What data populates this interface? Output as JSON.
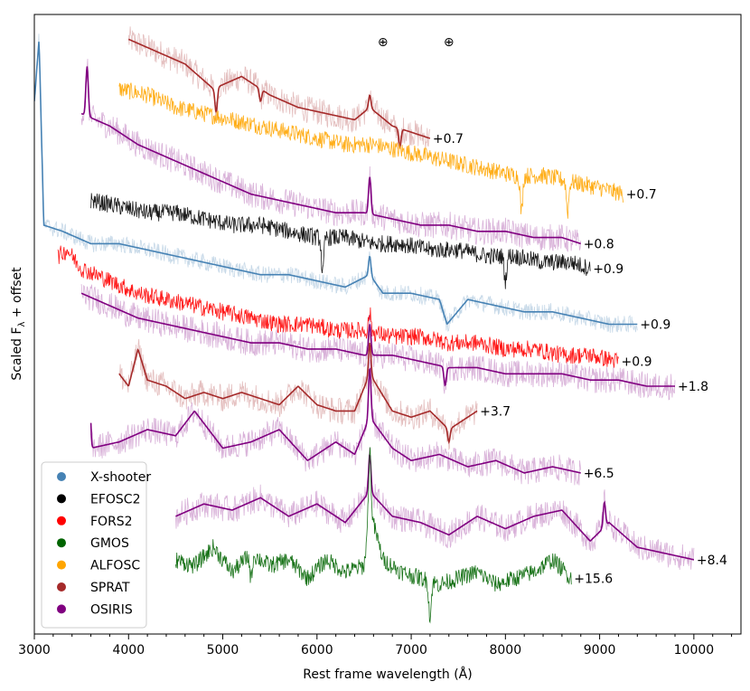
{
  "chart_data": {
    "type": "line",
    "title": "",
    "xlabel": "Rest frame wavelength (Å)",
    "ylabel_main": "Scaled F",
    "ylabel_sub": "λ",
    "ylabel_tail": " + offset",
    "xlim": [
      3000,
      10500
    ],
    "ylim": [
      0,
      100
    ],
    "x_ticks": [
      3000,
      4000,
      5000,
      6000,
      7000,
      8000,
      9000,
      10000
    ],
    "x_tick_labels": [
      "3000",
      "4000",
      "5000",
      "6000",
      "7000",
      "8000",
      "9000",
      "10000"
    ],
    "telluric_markers": [
      {
        "x": 6700,
        "symbol": "⊕"
      },
      {
        "x": 7400,
        "symbol": "⊕"
      }
    ],
    "instruments": {
      "xshooter": {
        "name": "X-shooter",
        "color": "#4682b4"
      },
      "efosc2": {
        "name": "EFOSC2",
        "color": "#000000"
      },
      "fors2": {
        "name": "FORS2",
        "color": "#ff0000"
      },
      "gmos": {
        "name": "GMOS",
        "color": "#006400"
      },
      "alfosc": {
        "name": "ALFOSC",
        "color": "#ffa500"
      },
      "sprat": {
        "name": "SPRAT",
        "color": "#a52a2a"
      },
      "osiris": {
        "name": "OSIRIS",
        "color": "#800080"
      }
    },
    "legend_order": [
      "xshooter",
      "efosc2",
      "fors2",
      "gmos",
      "alfosc",
      "sprat",
      "osiris"
    ],
    "legend_position": "lower-left",
    "spectra": [
      {
        "instrument": "sprat",
        "label": "+0.7",
        "x": [
          4000,
          4300,
          4600,
          4900,
          5200,
          5500,
          5800,
          6100,
          6400,
          6560,
          6800,
          7000,
          7200
        ],
        "y": [
          96,
          94,
          92,
          88,
          90,
          87,
          85,
          84,
          83,
          85,
          82,
          81,
          80
        ],
        "lines": [
          [
            4930,
            -4
          ],
          [
            5400,
            -2
          ],
          [
            6560,
            2
          ],
          [
            6880,
            -3
          ]
        ]
      },
      {
        "instrument": "alfosc",
        "label": "+0.7",
        "x": [
          3900,
          4200,
          4500,
          4800,
          5100,
          5400,
          5700,
          6000,
          6300,
          6600,
          6900,
          7200,
          7500,
          7800,
          8100,
          8400,
          8700,
          9000,
          9250
        ],
        "y": [
          88,
          87,
          85,
          84,
          83,
          82,
          81,
          80,
          79,
          79,
          78,
          77,
          76,
          75,
          74,
          74,
          73,
          72,
          71
        ],
        "lines": [
          [
            8170,
            -6
          ],
          [
            8660,
            -5
          ]
        ]
      },
      {
        "instrument": "osiris",
        "label": "+0.8",
        "x": [
          3500,
          3800,
          4100,
          4400,
          4700,
          5000,
          5300,
          5600,
          5900,
          6200,
          6500,
          6800,
          7100,
          7400,
          7700,
          8000,
          8300,
          8600,
          8800
        ],
        "y": [
          84,
          82,
          79,
          77,
          75,
          73,
          71,
          70,
          69,
          68,
          68,
          67,
          66,
          66,
          65,
          65,
          64,
          64,
          63
        ],
        "lines": [
          [
            3560,
            8
          ],
          [
            6560,
            6
          ]
        ]
      },
      {
        "instrument": "efosc2",
        "label": "+0.9",
        "x": [
          3600,
          3900,
          4200,
          4500,
          4800,
          5100,
          5400,
          5700,
          6000,
          6300,
          6600,
          6900,
          7200,
          7500,
          7800,
          8100,
          8400,
          8700,
          8900
        ],
        "y": [
          70,
          69,
          68,
          68,
          67,
          66,
          66,
          65,
          64,
          64,
          63,
          63,
          62,
          62,
          61,
          61,
          60,
          60,
          59
        ],
        "lines": [
          [
            6060,
            -6
          ],
          [
            8000,
            -4
          ]
        ]
      },
      {
        "instrument": "xshooter",
        "label": "+0.9",
        "x": [
          3000,
          3050,
          3100,
          3300,
          3600,
          3900,
          4200,
          4500,
          4800,
          5100,
          5400,
          5700,
          6000,
          6300,
          6560,
          6700,
          7000,
          7300,
          7380,
          7600,
          7900,
          8200,
          8500,
          8800,
          9100,
          9400
        ],
        "y": [
          86,
          96,
          66,
          65,
          63,
          63,
          62,
          61,
          60,
          59,
          58,
          58,
          57,
          56,
          58,
          55,
          55,
          54,
          50,
          54,
          53,
          52,
          52,
          51,
          50,
          50
        ],
        "lines": [
          [
            6560,
            3
          ]
        ]
      },
      {
        "instrument": "fors2",
        "label": "+0.9",
        "x": [
          3250,
          3350,
          3500,
          3800,
          4100,
          4400,
          4700,
          5000,
          5300,
          5600,
          5900,
          6200,
          6500,
          6800,
          7100,
          7400,
          7700,
          8000,
          8300,
          8600,
          8900,
          9200
        ],
        "y": [
          61,
          62,
          59,
          57,
          55,
          54,
          53,
          52,
          51,
          50,
          50,
          49,
          49,
          48,
          48,
          47,
          47,
          46,
          46,
          45,
          45,
          44
        ],
        "lines": [
          [
            6560,
            3
          ]
        ]
      },
      {
        "instrument": "osiris",
        "label": "+1.8",
        "x": [
          3500,
          3800,
          4100,
          4400,
          4700,
          5000,
          5300,
          5600,
          5900,
          6200,
          6500,
          6800,
          7100,
          7400,
          7700,
          8000,
          8300,
          8600,
          8900,
          9200,
          9500,
          9800
        ],
        "y": [
          55,
          53,
          51,
          50,
          49,
          48,
          47,
          47,
          46,
          46,
          45,
          45,
          44,
          43,
          43,
          42,
          42,
          42,
          41,
          41,
          40,
          40
        ],
        "lines": [
          [
            6560,
            5
          ],
          [
            7360,
            -3
          ]
        ]
      },
      {
        "instrument": "sprat",
        "label": "+3.7",
        "x": [
          3900,
          4000,
          4100,
          4200,
          4400,
          4600,
          4800,
          5000,
          5200,
          5400,
          5600,
          5800,
          6000,
          6200,
          6400,
          6560,
          6800,
          7000,
          7200,
          7400,
          7600,
          7700
        ],
        "y": [
          42,
          40,
          46,
          41,
          40,
          38,
          39,
          38,
          39,
          38,
          37,
          40,
          37,
          36,
          36,
          42,
          36,
          35,
          36,
          33,
          35,
          36
        ],
        "lines": [
          [
            6560,
            5
          ],
          [
            7400,
            -2
          ]
        ]
      },
      {
        "instrument": "osiris",
        "label": "+6.5",
        "x": [
          3600,
          3900,
          4200,
          4500,
          4700,
          5000,
          5300,
          5600,
          5900,
          6200,
          6400,
          6560,
          6800,
          7000,
          7300,
          7600,
          7900,
          8200,
          8500,
          8800
        ],
        "y": [
          30,
          31,
          33,
          32,
          36,
          30,
          31,
          33,
          28,
          31,
          29,
          35,
          30,
          28,
          29,
          27,
          28,
          26,
          27,
          26
        ],
        "lines": [
          [
            6560,
            8
          ],
          [
            3580,
            14
          ]
        ]
      },
      {
        "instrument": "osiris",
        "label": "+8.4",
        "x": [
          4500,
          4800,
          5100,
          5400,
          5700,
          6000,
          6300,
          6560,
          6800,
          7100,
          7400,
          7700,
          8000,
          8300,
          8600,
          8900,
          9100,
          9400,
          9700,
          10000
        ],
        "y": [
          19,
          21,
          20,
          22,
          19,
          21,
          18,
          23,
          19,
          18,
          16,
          19,
          17,
          19,
          20,
          15,
          18,
          14,
          13,
          12
        ],
        "lines": [
          [
            6560,
            6
          ],
          [
            9050,
            4
          ]
        ]
      },
      {
        "instrument": "gmos",
        "label": "+15.6",
        "x": [
          4500,
          4700,
          4900,
          5100,
          5300,
          5500,
          5700,
          5900,
          6100,
          6300,
          6500,
          6560,
          6700,
          6900,
          7100,
          7300,
          7500,
          7700,
          7900,
          8100,
          8300,
          8500,
          8700
        ],
        "y": [
          12,
          11,
          14,
          10,
          13,
          11,
          12,
          9,
          12,
          10,
          11,
          20,
          12,
          10,
          9,
          8,
          9,
          10,
          8,
          9,
          10,
          12,
          9
        ],
        "lines": [
          [
            6560,
            10
          ],
          [
            7200,
            -6
          ],
          [
            5300,
            -4
          ]
        ]
      }
    ]
  }
}
